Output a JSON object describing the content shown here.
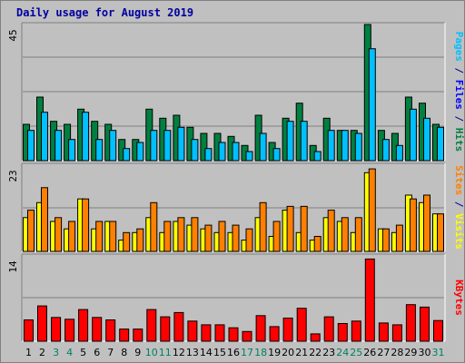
{
  "chart_data": {
    "type": "bar",
    "title": "Daily usage for August 2019",
    "categories": [
      "1",
      "2",
      "3",
      "4",
      "5",
      "6",
      "7",
      "8",
      "9",
      "10",
      "11",
      "12",
      "13",
      "14",
      "15",
      "16",
      "17",
      "18",
      "19",
      "20",
      "21",
      "22",
      "23",
      "24",
      "25",
      "26",
      "27",
      "28",
      "29",
      "30",
      "31"
    ],
    "weekend_days": [
      "3",
      "4",
      "10",
      "11",
      "17",
      "18",
      "24",
      "25",
      "31"
    ],
    "colors": {
      "hits": "#008040",
      "files": "#00c0ff",
      "pages": "#00e0ff",
      "visits": "#ffff00",
      "sites": "#ff8000",
      "kbytes": "#ff0000",
      "weekday_label": "#000000",
      "weekend_label": "#00805c",
      "separator": "#0000a0"
    },
    "panels": [
      {
        "id": "top",
        "ymax_label": "45",
        "ylim": [
          0,
          45
        ],
        "side_label": [
          {
            "text": "Pages",
            "color": "#00c0ff"
          },
          {
            "text": " / ",
            "color": "#0000a0"
          },
          {
            "text": "Files",
            "color": "#0000ff"
          },
          {
            "text": " / ",
            "color": "#0000a0"
          },
          {
            "text": "Hits",
            "color": "#008040"
          }
        ],
        "series": [
          {
            "name": "Hits",
            "color": "#008040",
            "values": [
              12,
              21,
              13,
              12,
              17,
              13,
              12,
              7,
              7,
              17,
              14,
              15,
              11,
              9,
              9,
              8,
              5,
              15,
              6,
              14,
              19,
              5,
              14,
              10,
              10,
              45,
              10,
              9,
              21,
              19,
              12
            ]
          },
          {
            "name": "Files",
            "color": "#00c0ff",
            "values": [
              10,
              16,
              10,
              7,
              16,
              7,
              10,
              4,
              6,
              10,
              10,
              11,
              7,
              4,
              6,
              6,
              3,
              9,
              4,
              13,
              13,
              3,
              10,
              10,
              9,
              37,
              7,
              5,
              17,
              14,
              11
            ]
          }
        ]
      },
      {
        "id": "middle",
        "ymax_label": "23",
        "ylim": [
          0,
          23
        ],
        "side_label": [
          {
            "text": "Sites",
            "color": "#ff8000"
          },
          {
            "text": " / ",
            "color": "#0000a0"
          },
          {
            "text": "Visits",
            "color": "#ffff00"
          }
        ],
        "series": [
          {
            "name": "Visits",
            "color": "#ffff00",
            "values": [
              9,
              13,
              8,
              6,
              14,
              6,
              8,
              3,
              5,
              9,
              5,
              8,
              7,
              6,
              5,
              5,
              3,
              9,
              4,
              11,
              5,
              3,
              9,
              8,
              5,
              21,
              6,
              5,
              15,
              13,
              10
            ]
          },
          {
            "name": "Sites",
            "color": "#ff8000",
            "values": [
              11,
              17,
              9,
              8,
              14,
              8,
              8,
              5,
              6,
              13,
              8,
              9,
              9,
              7,
              8,
              7,
              6,
              13,
              8,
              12,
              12,
              4,
              11,
              9,
              9,
              22,
              6,
              7,
              14,
              15,
              10
            ]
          }
        ]
      },
      {
        "id": "bottom",
        "ymax_label": "14",
        "ylim": [
          0,
          14
        ],
        "side_label": [
          {
            "text": "KBytes",
            "color": "#ff0000"
          }
        ],
        "series": [
          {
            "name": "KBytes",
            "color": "#ff0000",
            "values": [
              3.5,
              5.8,
              3.9,
              3.6,
              5.2,
              3.9,
              3.5,
              2.0,
              2.0,
              5.2,
              4.0,
              4.7,
              3.3,
              2.7,
              2.7,
              2.2,
              1.6,
              4.2,
              2.4,
              3.8,
              5.4,
              1.2,
              4.0,
              2.9,
              3.3,
              13.5,
              3.0,
              2.7,
              6.0,
              5.6,
              3.4
            ]
          }
        ]
      }
    ]
  }
}
